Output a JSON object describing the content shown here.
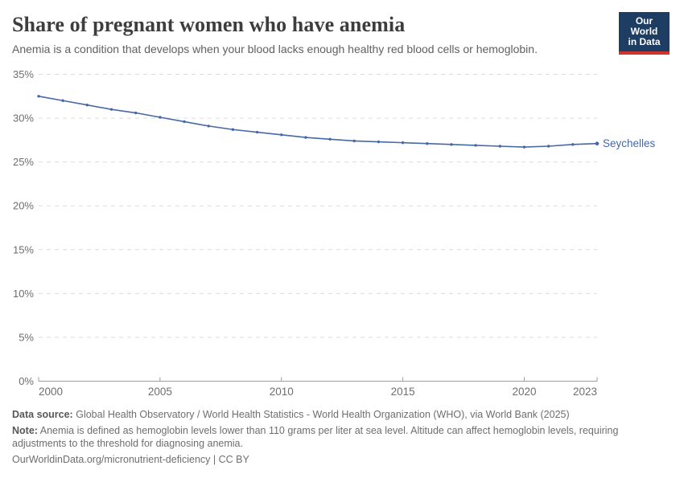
{
  "header": {
    "title": "Share of pregnant women who have anemia",
    "subtitle": "Anemia is a condition that develops when your blood lacks enough healthy red blood cells or hemoglobin.",
    "logo": {
      "line1": "Our World",
      "line2": "in Data"
    }
  },
  "chart_data": {
    "type": "line",
    "title": "Share of pregnant women who have anemia",
    "x": [
      2000,
      2001,
      2002,
      2003,
      2004,
      2005,
      2006,
      2007,
      2008,
      2009,
      2010,
      2011,
      2012,
      2013,
      2014,
      2015,
      2016,
      2017,
      2018,
      2019,
      2020,
      2021,
      2022,
      2023
    ],
    "series": [
      {
        "name": "Seychelles",
        "color": "#4768a5",
        "values": [
          32.5,
          32.0,
          31.5,
          31.0,
          30.6,
          30.1,
          29.6,
          29.1,
          28.7,
          28.4,
          28.1,
          27.8,
          27.6,
          27.4,
          27.3,
          27.2,
          27.1,
          27.0,
          26.9,
          26.8,
          26.7,
          26.8,
          27.0,
          27.1
        ]
      }
    ],
    "x_ticks": [
      2000,
      2005,
      2010,
      2015,
      2020,
      2023
    ],
    "y_ticks": [
      0,
      5,
      10,
      15,
      20,
      25,
      30,
      35
    ],
    "y_tick_suffix": "%",
    "xlim": [
      2000,
      2023
    ],
    "ylim": [
      0,
      35
    ],
    "grid": "horizontal-dashed",
    "legend": "end-of-line-label"
  },
  "footer": {
    "datasource_label": "Data source:",
    "datasource_text": "Global Health Observatory / World Health Statistics - World Health Organization (WHO), via World Bank (2025)",
    "note_label": "Note:",
    "note_text": "Anemia is defined as hemoglobin levels lower than 110 grams per liter at sea level. Altitude can affect hemoglobin levels, requiring adjustments to the threshold for diagnosing anemia.",
    "license": "OurWorldinData.org/micronutrient-deficiency | CC BY"
  },
  "colors": {
    "accent": "#4768a5",
    "logo_bg": "#1d3d63",
    "logo_red": "#d0342c",
    "grid": "#dcdcdc",
    "axis": "#9e9e9e",
    "tick_text": "#6e6e6e"
  }
}
